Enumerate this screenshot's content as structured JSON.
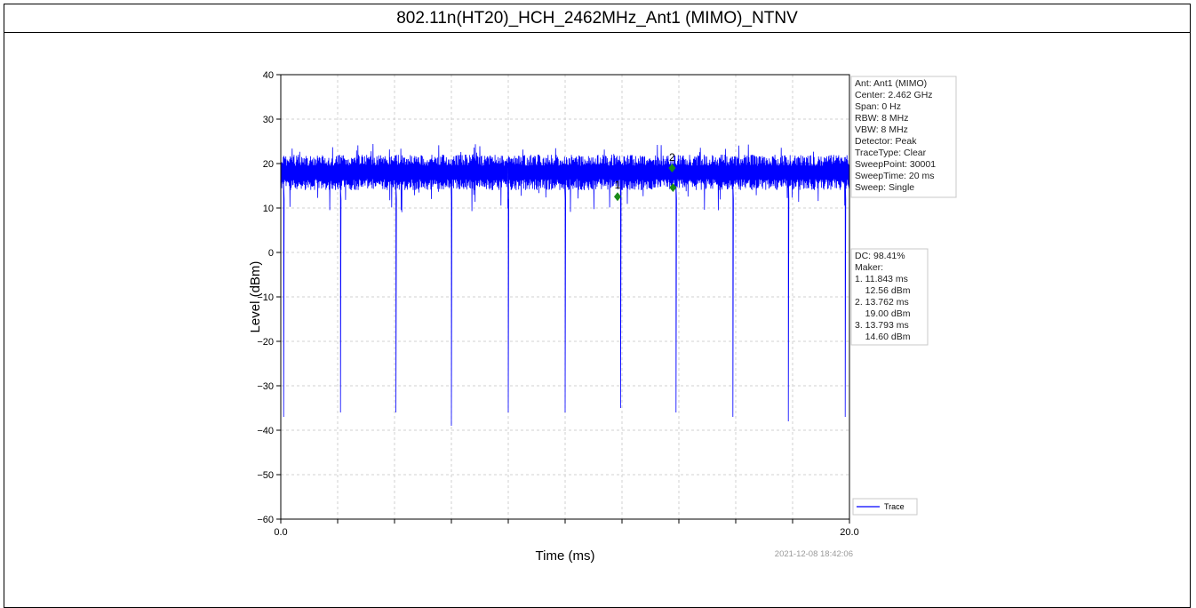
{
  "page_title": "802.11n(HT20)_HCH_2462MHz_Ant1 (MIMO)_NTNV",
  "timestamp": "2021-12-08 18:42:06",
  "info_box": [
    "Ant: Ant1 (MIMO)",
    "Center: 2.462 GHz",
    "Span: 0 Hz",
    "RBW: 8 MHz",
    "VBW: 8 MHz",
    "Detector: Peak",
    "TraceType: Clear",
    "SweepPoint: 30001",
    "SweepTime: 20 ms",
    "Sweep: Single"
  ],
  "marker_box": [
    "DC: 98.41%",
    "Maker:",
    "1. 11.843 ms",
    "    12.56 dBm",
    "2. 13.762 ms",
    "    19.00 dBm",
    "3. 13.793 ms",
    "    14.60 dBm"
  ],
  "legend_label": "Trace",
  "colors": {
    "trace": "#0000ff",
    "marker": "#1a8a1a",
    "grid": "#d0d0d0"
  },
  "chart_data": {
    "type": "line",
    "title": "",
    "xlabel": "Time (ms)",
    "ylabel": "Level (dBm)",
    "xlim": [
      0.0,
      20.0
    ],
    "ylim": [
      -60,
      40
    ],
    "x_ticks": [
      "0.0",
      "20.0"
    ],
    "y_ticks": [
      40,
      30,
      20,
      10,
      0,
      -10,
      -20,
      -30,
      -40,
      -50,
      -60
    ],
    "y_tick_labels": [
      "40",
      "30",
      "20",
      "10",
      "0",
      "−10",
      "−20",
      "−30",
      "−40",
      "−50",
      "−60"
    ],
    "grid": true,
    "legend_position": "bottom-right",
    "series": [
      {
        "name": "Trace",
        "band_low": 14,
        "band_high": 22,
        "band_peak_high": 24.5,
        "band_peak_low": 9,
        "dips": [
          {
            "x": 0.1,
            "y": -37
          },
          {
            "x": 2.1,
            "y": -36
          },
          {
            "x": 4.05,
            "y": -36
          },
          {
            "x": 6.0,
            "y": -39
          },
          {
            "x": 8.0,
            "y": -36
          },
          {
            "x": 10.0,
            "y": -36
          },
          {
            "x": 11.95,
            "y": -35
          },
          {
            "x": 13.9,
            "y": -36
          },
          {
            "x": 15.9,
            "y": -37
          },
          {
            "x": 17.85,
            "y": -38
          },
          {
            "x": 19.85,
            "y": -37
          }
        ]
      }
    ],
    "markers": [
      {
        "label": "1",
        "x": 11.843,
        "y": 12.56
      },
      {
        "label": "2",
        "x": 13.762,
        "y": 19.0
      },
      {
        "label": "3",
        "x": 13.793,
        "y": 14.6
      }
    ]
  }
}
